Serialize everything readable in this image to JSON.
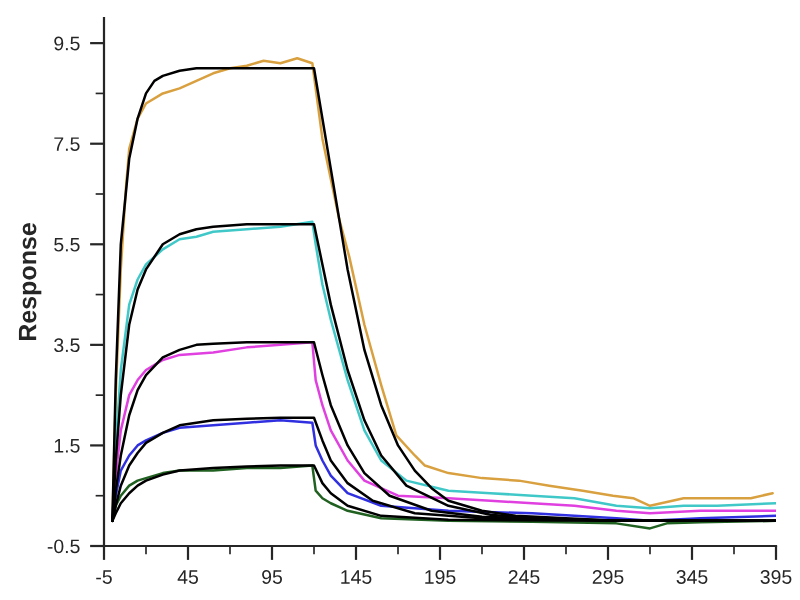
{
  "chart_data": {
    "type": "line",
    "ylabel": "Response",
    "xlim": [
      -5,
      395
    ],
    "ylim": [
      -0.5,
      10
    ],
    "xticks": [
      -5,
      45,
      95,
      145,
      195,
      245,
      295,
      345,
      395
    ],
    "yticks": [
      -0.5,
      1.5,
      3.5,
      5.5,
      7.5,
      9.5
    ],
    "grid": false,
    "legend": false,
    "marker": "none",
    "line_style": "solid",
    "series": [
      {
        "color": "#d9a040",
        "x": [
          0,
          2,
          5,
          8,
          10,
          15,
          20,
          30,
          40,
          50,
          60,
          70,
          80,
          90,
          100,
          110,
          119,
          121,
          125,
          130,
          135,
          141,
          150,
          160,
          169,
          180,
          186,
          200,
          220,
          242,
          260,
          280,
          298,
          310,
          320,
          340,
          360,
          380,
          393
        ],
        "values": [
          0,
          2.5,
          5.0,
          6.6,
          7.4,
          8.0,
          8.3,
          8.5,
          8.6,
          8.75,
          8.9,
          9.0,
          9.05,
          9.15,
          9.1,
          9.2,
          9.1,
          8.6,
          7.6,
          6.8,
          6.0,
          5.25,
          3.9,
          2.7,
          1.7,
          1.3,
          1.1,
          0.95,
          0.85,
          0.8,
          0.7,
          0.6,
          0.5,
          0.45,
          0.3,
          0.45,
          0.45,
          0.45,
          0.55
        ]
      },
      {
        "color": "#40c8c8",
        "x": [
          0,
          2,
          5,
          10,
          15,
          20,
          30,
          40,
          50,
          60,
          80,
          100,
          119,
          121,
          125,
          130,
          140,
          150,
          160,
          175,
          200,
          225,
          250,
          275,
          300,
          320,
          340,
          360,
          395
        ],
        "values": [
          0,
          1.5,
          3.0,
          4.3,
          4.8,
          5.1,
          5.4,
          5.6,
          5.65,
          5.75,
          5.8,
          5.85,
          5.95,
          5.5,
          4.7,
          4.0,
          2.8,
          1.8,
          1.2,
          0.8,
          0.6,
          0.55,
          0.5,
          0.45,
          0.3,
          0.25,
          0.3,
          0.3,
          0.35
        ]
      },
      {
        "color": "#e040e0",
        "x": [
          0,
          2,
          5,
          10,
          15,
          20,
          30,
          40,
          60,
          80,
          100,
          119,
          121,
          125,
          130,
          140,
          150,
          170,
          200,
          225,
          250,
          275,
          300,
          320,
          350,
          395
        ],
        "values": [
          0,
          0.9,
          1.8,
          2.5,
          2.8,
          3.0,
          3.2,
          3.3,
          3.35,
          3.45,
          3.5,
          3.55,
          2.8,
          2.3,
          1.8,
          1.2,
          0.8,
          0.5,
          0.45,
          0.4,
          0.35,
          0.3,
          0.2,
          0.15,
          0.2,
          0.2
        ]
      },
      {
        "color": "#3030e0",
        "x": [
          0,
          2,
          5,
          10,
          15,
          20,
          30,
          40,
          60,
          80,
          100,
          119,
          121,
          125,
          130,
          140,
          160,
          200,
          250,
          300,
          320,
          350,
          395
        ],
        "values": [
          0,
          0.5,
          1.0,
          1.3,
          1.5,
          1.6,
          1.75,
          1.85,
          1.9,
          1.95,
          2.0,
          1.95,
          1.5,
          1.2,
          0.9,
          0.55,
          0.3,
          0.2,
          0.15,
          0.05,
          0.0,
          0.05,
          0.1
        ]
      },
      {
        "color": "#206020",
        "x": [
          0,
          2,
          5,
          10,
          15,
          20,
          30,
          40,
          60,
          80,
          100,
          119,
          121,
          125,
          130,
          140,
          160,
          200,
          250,
          300,
          320,
          330,
          350,
          395
        ],
        "values": [
          0,
          0.3,
          0.5,
          0.7,
          0.8,
          0.85,
          0.95,
          1.0,
          1.0,
          1.05,
          1.05,
          1.1,
          0.6,
          0.45,
          0.35,
          0.2,
          0.05,
          0.0,
          -0.02,
          -0.05,
          -0.15,
          -0.05,
          -0.03,
          0.0
        ]
      },
      {
        "color": "#000000",
        "x": [
          0,
          2,
          5,
          10,
          15,
          20,
          25,
          30,
          40,
          50,
          60,
          80,
          100,
          119,
          120,
          125,
          130,
          135,
          140,
          150,
          160,
          170,
          180,
          190,
          200,
          220,
          240,
          270,
          300,
          350,
          395
        ],
        "values": [
          0,
          2.8,
          5.5,
          7.2,
          8.0,
          8.5,
          8.75,
          8.85,
          8.95,
          9.0,
          9.0,
          9.0,
          9.0,
          9.0,
          9.0,
          8.0,
          7.0,
          6.0,
          5.0,
          3.4,
          2.3,
          1.5,
          1.0,
          0.65,
          0.4,
          0.2,
          0.1,
          0.05,
          0.0,
          0.0,
          0.0
        ]
      },
      {
        "color": "#000000",
        "x": [
          0,
          2,
          5,
          10,
          15,
          20,
          30,
          40,
          50,
          60,
          80,
          100,
          119,
          120,
          125,
          130,
          140,
          150,
          160,
          175,
          200,
          225,
          250,
          300,
          395
        ],
        "values": [
          0,
          1.2,
          2.5,
          3.9,
          4.6,
          5.0,
          5.5,
          5.7,
          5.8,
          5.85,
          5.9,
          5.9,
          5.9,
          5.9,
          5.1,
          4.3,
          3.0,
          2.0,
          1.3,
          0.7,
          0.3,
          0.12,
          0.05,
          0.0,
          0.0
        ]
      },
      {
        "color": "#000000",
        "x": [
          0,
          2,
          5,
          10,
          15,
          20,
          30,
          40,
          50,
          60,
          80,
          100,
          119,
          120,
          125,
          130,
          140,
          150,
          165,
          190,
          220,
          250,
          300,
          395
        ],
        "values": [
          0,
          0.6,
          1.3,
          2.1,
          2.6,
          2.9,
          3.25,
          3.4,
          3.5,
          3.52,
          3.55,
          3.55,
          3.55,
          3.55,
          2.9,
          2.3,
          1.5,
          0.95,
          0.5,
          0.2,
          0.08,
          0.05,
          0.0,
          0.0
        ]
      },
      {
        "color": "#000000",
        "x": [
          0,
          2,
          5,
          10,
          15,
          20,
          30,
          40,
          60,
          80,
          100,
          119,
          120,
          125,
          130,
          140,
          155,
          180,
          220,
          300,
          395
        ],
        "values": [
          0,
          0.3,
          0.7,
          1.1,
          1.35,
          1.55,
          1.75,
          1.9,
          2.0,
          2.03,
          2.05,
          2.05,
          2.05,
          1.6,
          1.2,
          0.75,
          0.4,
          0.15,
          0.05,
          0.0,
          0.0
        ]
      },
      {
        "color": "#000000",
        "x": [
          0,
          2,
          5,
          10,
          15,
          20,
          30,
          40,
          60,
          80,
          100,
          119,
          120,
          125,
          130,
          140,
          160,
          200,
          300,
          395
        ],
        "values": [
          0,
          0.15,
          0.35,
          0.55,
          0.7,
          0.8,
          0.92,
          1.0,
          1.05,
          1.08,
          1.1,
          1.1,
          1.1,
          0.75,
          0.55,
          0.3,
          0.1,
          0.02,
          0.0,
          0.0
        ]
      }
    ]
  }
}
